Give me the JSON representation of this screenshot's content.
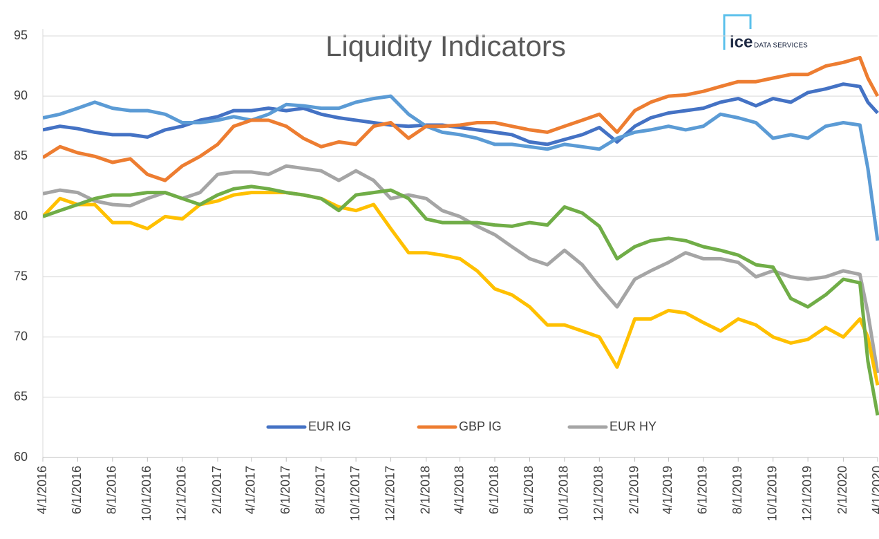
{
  "chart_data": {
    "type": "line",
    "title": "Liquidity Indicators",
    "logo": "ice",
    "logo_subtitle": "DATA SERVICES",
    "x": [
      "4/1/2016",
      "5/1/2016",
      "6/1/2016",
      "7/1/2016",
      "8/1/2016",
      "9/1/2016",
      "10/1/2016",
      "11/1/2016",
      "12/1/2016",
      "1/1/2017",
      "2/1/2017",
      "3/1/2017",
      "4/1/2017",
      "5/1/2017",
      "6/1/2017",
      "7/1/2017",
      "8/1/2017",
      "9/1/2017",
      "10/1/2017",
      "11/1/2017",
      "12/1/2017",
      "1/1/2018",
      "2/1/2018",
      "3/1/2018",
      "4/1/2018",
      "5/1/2018",
      "6/1/2018",
      "7/1/2018",
      "8/1/2018",
      "9/1/2018",
      "10/1/2018",
      "11/1/2018",
      "12/1/2018",
      "1/1/2019",
      "2/1/2019",
      "3/1/2019",
      "4/1/2019",
      "5/1/2019",
      "6/1/2019",
      "7/1/2019",
      "8/1/2019",
      "9/1/2019",
      "10/1/2019",
      "11/1/2019",
      "12/1/2019",
      "1/1/2020",
      "2/1/2020",
      "3/1/2020",
      "3/15/2020",
      "4/1/2020"
    ],
    "series": [
      {
        "name": "EUR IG",
        "color": "#4472c4",
        "values": [
          87.2,
          87.5,
          87.3,
          87.0,
          86.8,
          86.8,
          86.6,
          87.2,
          87.5,
          88.0,
          88.3,
          88.8,
          88.8,
          89.0,
          88.8,
          89.0,
          88.5,
          88.2,
          88.0,
          87.8,
          87.6,
          87.5,
          87.6,
          87.6,
          87.4,
          87.2,
          87.0,
          86.8,
          86.2,
          86.0,
          86.4,
          86.8,
          87.4,
          86.2,
          87.5,
          88.2,
          88.6,
          88.8,
          89.0,
          89.5,
          89.8,
          89.2,
          89.8,
          89.5,
          90.3,
          90.6,
          91.0,
          90.8,
          89.5,
          88.6
        ]
      },
      {
        "color": "#5b9bd5",
        "values": [
          88.2,
          88.5,
          89.0,
          89.5,
          89.0,
          88.8,
          88.8,
          88.5,
          87.8,
          87.8,
          88.0,
          88.3,
          88.0,
          88.5,
          89.3,
          89.2,
          89.0,
          89.0,
          89.5,
          89.8,
          90.0,
          88.5,
          87.5,
          87.0,
          86.8,
          86.5,
          86.0,
          86.0,
          85.8,
          85.6,
          86.0,
          85.8,
          85.6,
          86.5,
          87.0,
          87.2,
          87.5,
          87.2,
          87.5,
          88.5,
          88.2,
          87.8,
          86.5,
          86.8,
          86.5,
          87.5,
          87.8,
          87.6,
          84.0,
          78.0
        ]
      },
      {
        "name": "GBP IG",
        "color": "#ed7d31",
        "values": [
          84.9,
          85.8,
          85.3,
          85.0,
          84.5,
          84.8,
          83.5,
          83.0,
          84.2,
          85.0,
          86.0,
          87.5,
          88.0,
          88.0,
          87.5,
          86.5,
          85.8,
          86.2,
          86.0,
          87.5,
          87.8,
          86.5,
          87.5,
          87.5,
          87.6,
          87.8,
          87.8,
          87.5,
          87.2,
          87.0,
          87.5,
          88.0,
          88.5,
          87.0,
          88.8,
          89.5,
          90.0,
          90.1,
          90.4,
          90.8,
          91.2,
          91.2,
          91.5,
          91.8,
          91.8,
          92.5,
          92.8,
          93.2,
          91.5,
          90.0
        ]
      },
      {
        "name": "EUR HY",
        "color": "#a5a5a5",
        "values": [
          81.9,
          82.2,
          82.0,
          81.3,
          81.0,
          80.9,
          81.5,
          82.0,
          81.5,
          82.0,
          83.5,
          83.7,
          83.7,
          83.5,
          84.2,
          84.0,
          83.8,
          83.0,
          83.8,
          83.0,
          81.5,
          81.8,
          81.5,
          80.5,
          80.0,
          79.2,
          78.5,
          77.5,
          76.5,
          76.0,
          77.2,
          76.0,
          74.2,
          72.5,
          74.8,
          75.5,
          76.2,
          77.0,
          76.5,
          76.5,
          76.2,
          75.0,
          75.5,
          75.0,
          74.8,
          75.0,
          75.5,
          75.2,
          72.0,
          67.0
        ]
      },
      {
        "color": "#ffc000",
        "values": [
          80.0,
          81.5,
          81.0,
          81.0,
          79.5,
          79.5,
          79.0,
          80.0,
          79.8,
          81.0,
          81.3,
          81.8,
          82.0,
          82.0,
          82.0,
          81.8,
          81.5,
          80.8,
          80.5,
          81.0,
          79.0,
          77.0,
          77.0,
          76.8,
          76.5,
          75.5,
          74.0,
          73.5,
          72.5,
          71.0,
          71.0,
          70.5,
          70.0,
          67.5,
          71.5,
          71.5,
          72.2,
          72.0,
          71.2,
          70.5,
          71.5,
          71.0,
          70.0,
          69.5,
          69.8,
          70.8,
          70.0,
          71.5,
          70.0,
          66.0
        ]
      },
      {
        "color": "#70ad47",
        "values": [
          80.0,
          80.5,
          81.0,
          81.5,
          81.8,
          81.8,
          82.0,
          82.0,
          81.5,
          81.0,
          81.8,
          82.3,
          82.5,
          82.3,
          82.0,
          81.8,
          81.5,
          80.5,
          81.8,
          82.0,
          82.2,
          81.5,
          79.8,
          79.5,
          79.5,
          79.5,
          79.3,
          79.2,
          79.5,
          79.3,
          80.8,
          80.3,
          79.2,
          76.5,
          77.5,
          78.0,
          78.2,
          78.0,
          77.5,
          77.2,
          76.8,
          76.0,
          75.8,
          73.2,
          72.5,
          73.5,
          74.8,
          74.5,
          68.0,
          63.5
        ]
      }
    ],
    "xlim": [
      "4/1/2016",
      "4/1/2020"
    ],
    "xticks": [
      "4/1/2016",
      "6/1/2016",
      "8/1/2016",
      "10/1/2016",
      "12/1/2016",
      "2/1/2017",
      "4/1/2017",
      "6/1/2017",
      "8/1/2017",
      "10/1/2017",
      "12/1/2017",
      "2/1/2018",
      "4/1/2018",
      "6/1/2018",
      "8/1/2018",
      "10/1/2018",
      "12/1/2018",
      "2/1/2019",
      "4/1/2019",
      "6/1/2019",
      "8/1/2019",
      "10/1/2019",
      "12/1/2019",
      "2/1/2020",
      "4/1/2020"
    ],
    "ylim": [
      60,
      95
    ],
    "yticks": [
      60,
      65,
      70,
      75,
      80,
      85,
      90,
      95
    ],
    "grid": true,
    "legend": "bottom"
  }
}
